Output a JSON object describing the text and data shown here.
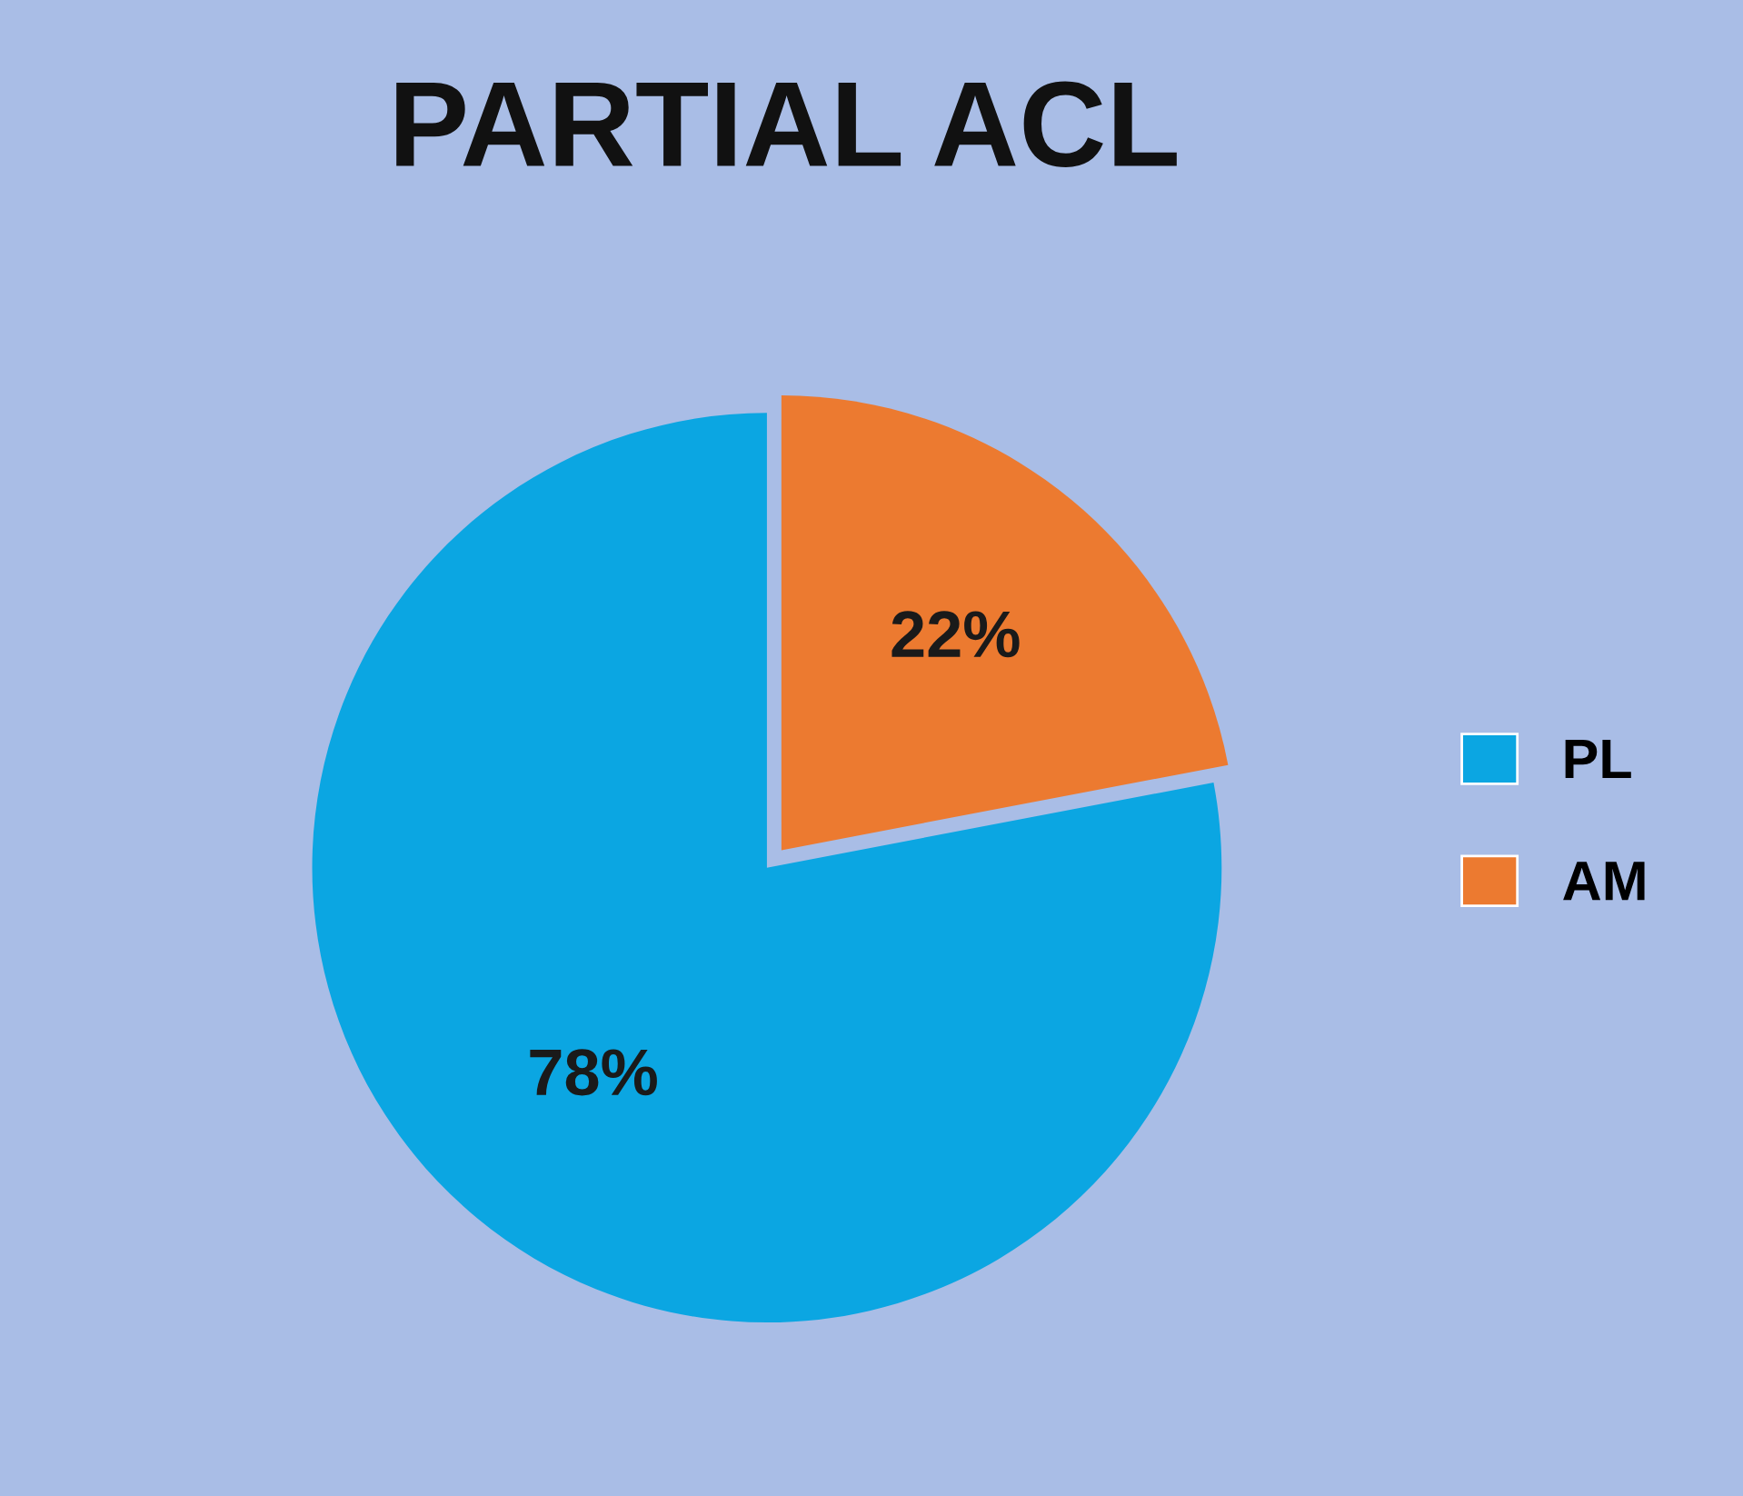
{
  "chart_data": {
    "type": "pie",
    "title": "PARTIAL ACL",
    "categories": [
      "PL",
      "AM"
    ],
    "values": [
      78,
      22
    ],
    "colors": [
      "#0ba6e2",
      "#ec7a30"
    ],
    "value_labels": [
      "78%",
      "22%"
    ],
    "legend": "right"
  }
}
